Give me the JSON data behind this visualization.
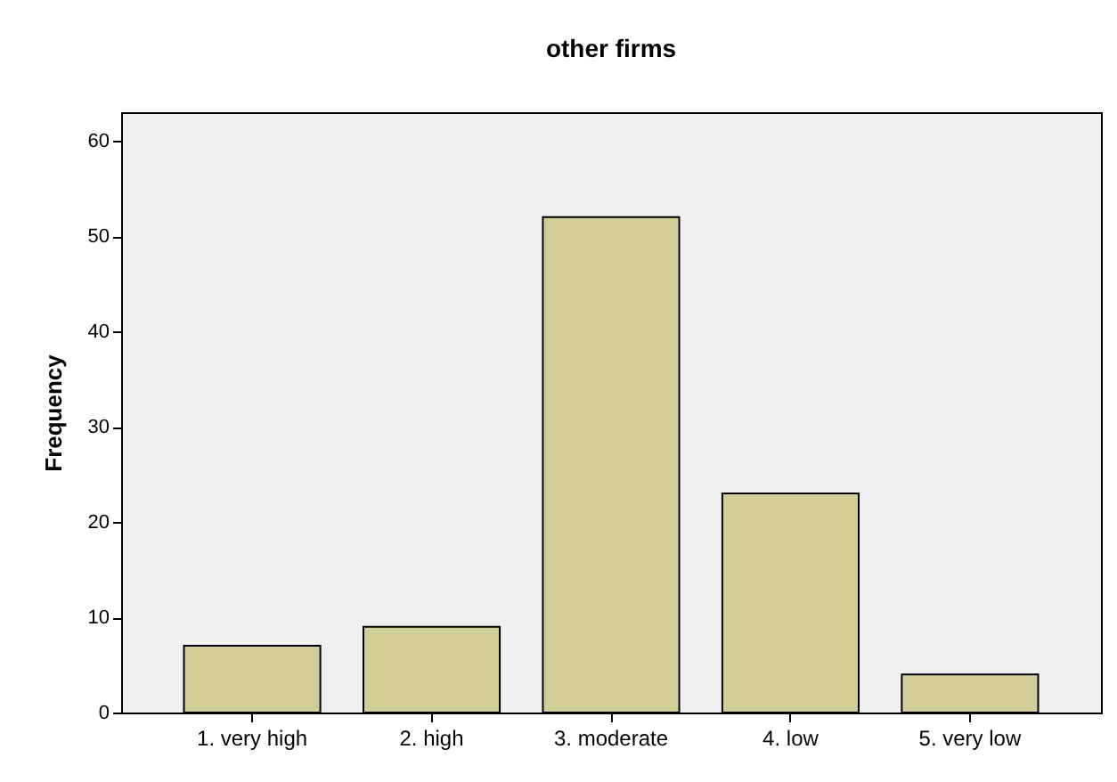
{
  "chart_data": {
    "type": "bar",
    "title": "other firms",
    "ylabel": "Frequency",
    "categories": [
      "1. very high",
      "2. high",
      "3. moderate",
      "4. low",
      "5. very low"
    ],
    "values": [
      7,
      9,
      52,
      23,
      4
    ],
    "color": "#d3ce98",
    "ylim": [
      0,
      63
    ],
    "yticks": [
      0,
      10,
      20,
      30,
      40,
      50,
      60
    ],
    "grid": false
  }
}
